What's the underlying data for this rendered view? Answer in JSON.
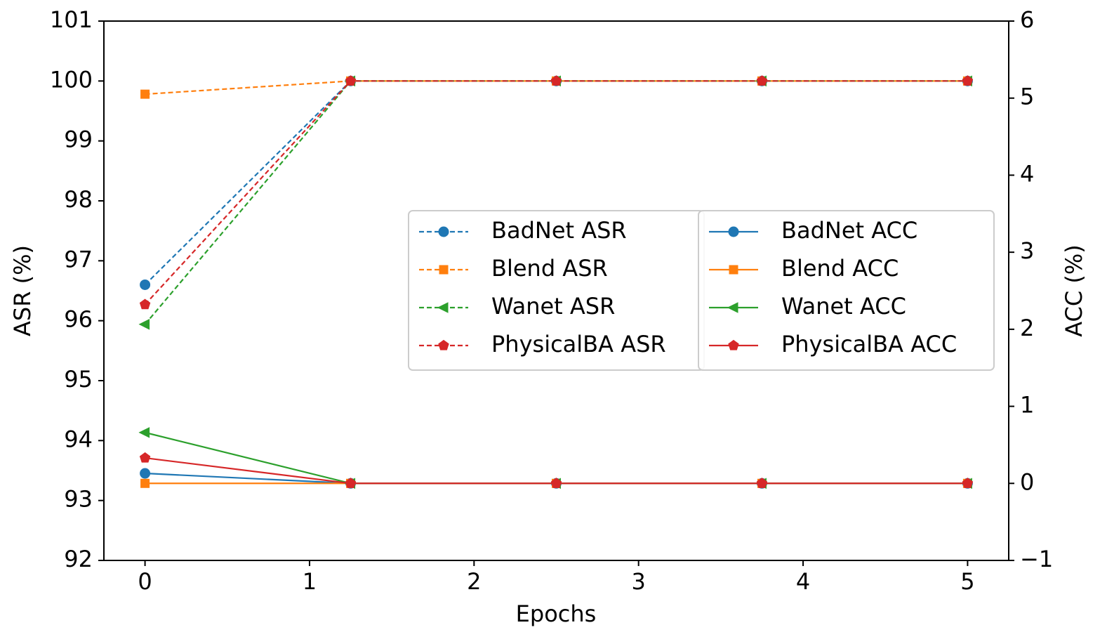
{
  "chart_data": {
    "type": "line",
    "x_label": "Epochs",
    "y_label": "ASR (%)",
    "y2_label": "ACC (%)",
    "x": [
      0,
      1.25,
      2.5,
      3.75,
      5
    ],
    "xlim": [
      -0.25,
      5.25
    ],
    "xticks": [
      0,
      1,
      2,
      3,
      4,
      5
    ],
    "ylim": [
      92,
      101
    ],
    "yticks": [
      92,
      93,
      94,
      95,
      96,
      97,
      98,
      99,
      100,
      101
    ],
    "y2lim": [
      -1,
      6
    ],
    "y2ticks": [
      {
        "value": -1,
        "label": "−1"
      },
      0,
      1,
      2,
      3,
      4,
      5,
      6
    ],
    "grid": false,
    "series": [
      {
        "name": "BadNet ASR",
        "color": "#1f77b4",
        "linestyle": "dashed",
        "marker": "circle",
        "axis": "y",
        "values": [
          96.6,
          100,
          100,
          100,
          100
        ]
      },
      {
        "name": "Blend ASR",
        "color": "#ff7f0e",
        "linestyle": "dashed",
        "marker": "square",
        "axis": "y",
        "values": [
          99.78,
          100,
          100,
          100,
          100
        ]
      },
      {
        "name": "Wanet ASR",
        "color": "#2ca02c",
        "linestyle": "dashed",
        "marker": "triangle-left",
        "axis": "y",
        "values": [
          95.94,
          100,
          100,
          100,
          100
        ]
      },
      {
        "name": "PhysicalBA ASR",
        "color": "#d62728",
        "linestyle": "dashed",
        "marker": "pentagon",
        "axis": "y",
        "values": [
          96.27,
          100,
          100,
          100,
          100
        ]
      },
      {
        "name": "BadNet ACC",
        "color": "#1f77b4",
        "linestyle": "solid",
        "marker": "circle",
        "axis": "y2",
        "values": [
          0.13,
          0,
          0,
          0,
          0
        ]
      },
      {
        "name": "Blend ACC",
        "color": "#ff7f0e",
        "linestyle": "solid",
        "marker": "square",
        "axis": "y2",
        "values": [
          0,
          0,
          0,
          0,
          0
        ]
      },
      {
        "name": "Wanet ACC",
        "color": "#2ca02c",
        "linestyle": "solid",
        "marker": "triangle-left",
        "axis": "y2",
        "values": [
          0.66,
          0,
          0,
          0,
          0
        ]
      },
      {
        "name": "PhysicalBA ACC",
        "color": "#d62728",
        "linestyle": "solid",
        "marker": "pentagon",
        "axis": "y2",
        "values": [
          0.33,
          0,
          0,
          0,
          0
        ]
      }
    ]
  }
}
